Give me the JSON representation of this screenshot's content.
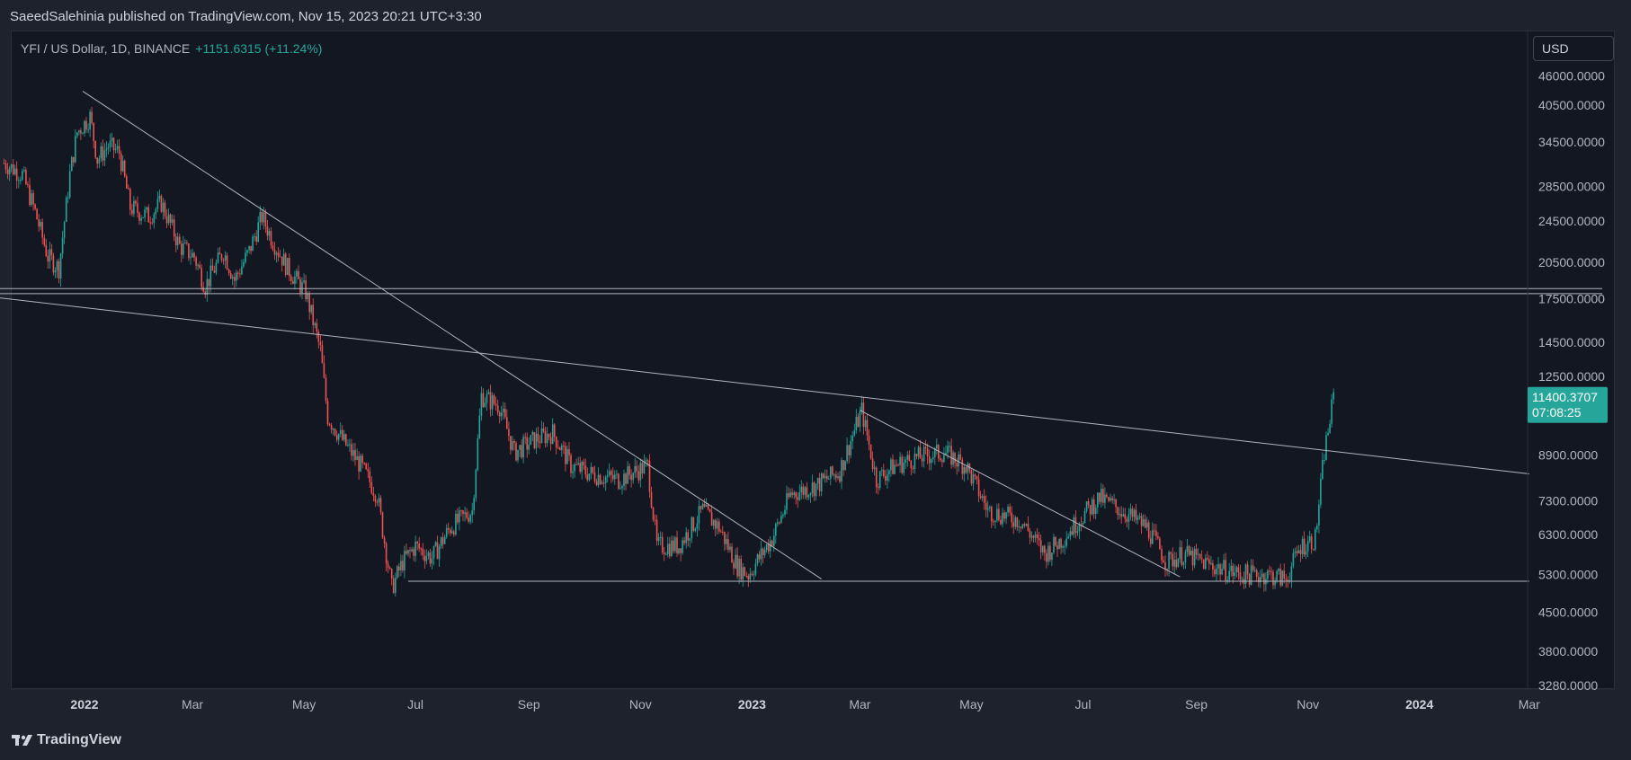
{
  "header": {
    "publish_line": "SaeedSalehinia published on TradingView.com, Nov 15, 2023 20:21 UTC+3:30"
  },
  "symbol": {
    "title": "YFI / US Dollar, 1D, BINANCE",
    "change": "+1151.6315 (+11.24%)"
  },
  "currency_button": {
    "label": "USD"
  },
  "footer": {
    "brand": "TradingView"
  },
  "colors": {
    "background": "#131722",
    "frame": "#1e222d",
    "up": "#26a69a",
    "down": "#ef5350",
    "trendline": "#b2b5be",
    "text": "#b2b5be"
  },
  "chart_data": {
    "type": "candlestick",
    "price_axis": {
      "scale": "log",
      "ticks": [
        "46000.0000",
        "40500.0000",
        "34500.0000",
        "28500.0000",
        "24500.0000",
        "20500.0000",
        "17500.0000",
        "14500.0000",
        "12500.0000",
        "8900.0000",
        "7300.0000",
        "6300.0000",
        "5300.0000",
        "4500.0000",
        "3800.0000",
        "3280.0000"
      ],
      "ylim": [
        3280,
        46000
      ]
    },
    "time_axis": {
      "ticks": [
        {
          "label": "2022",
          "date": "2022-01-01",
          "year": true
        },
        {
          "label": "Mar",
          "date": "2022-03-01",
          "year": false
        },
        {
          "label": "May",
          "date": "2022-05-01",
          "year": false
        },
        {
          "label": "Jul",
          "date": "2022-07-01",
          "year": false
        },
        {
          "label": "Sep",
          "date": "2022-09-01",
          "year": false
        },
        {
          "label": "Nov",
          "date": "2022-11-01",
          "year": false
        },
        {
          "label": "2023",
          "date": "2023-01-01",
          "year": true
        },
        {
          "label": "Mar",
          "date": "2023-03-01",
          "year": false
        },
        {
          "label": "May",
          "date": "2023-05-01",
          "year": false
        },
        {
          "label": "Jul",
          "date": "2023-07-01",
          "year": false
        },
        {
          "label": "Sep",
          "date": "2023-09-01",
          "year": false
        },
        {
          "label": "Nov",
          "date": "2023-11-01",
          "year": false
        },
        {
          "label": "2024",
          "date": "2024-01-01",
          "year": true
        },
        {
          "label": "Mar",
          "date": "2024-03-01",
          "year": false
        }
      ]
    },
    "last_price": {
      "value": "11400.3707",
      "countdown": "07:08:25",
      "price": 11400
    },
    "price_path": [
      {
        "date": "2021-11-18",
        "close": 31500
      },
      {
        "date": "2021-11-28",
        "close": 30000
      },
      {
        "date": "2021-12-05",
        "close": 25500
      },
      {
        "date": "2021-12-12",
        "close": 21000
      },
      {
        "date": "2021-12-18",
        "close": 20000
      },
      {
        "date": "2021-12-24",
        "close": 30000
      },
      {
        "date": "2021-12-28",
        "close": 36000
      },
      {
        "date": "2022-01-04",
        "close": 38500
      },
      {
        "date": "2022-01-08",
        "close": 32000
      },
      {
        "date": "2022-01-14",
        "close": 34000
      },
      {
        "date": "2022-01-20",
        "close": 33000
      },
      {
        "date": "2022-01-26",
        "close": 26000
      },
      {
        "date": "2022-02-05",
        "close": 25000
      },
      {
        "date": "2022-02-12",
        "close": 26500
      },
      {
        "date": "2022-02-22",
        "close": 22000
      },
      {
        "date": "2022-03-02",
        "close": 21000
      },
      {
        "date": "2022-03-08",
        "close": 18500
      },
      {
        "date": "2022-03-18",
        "close": 21500
      },
      {
        "date": "2022-03-24",
        "close": 19000
      },
      {
        "date": "2022-04-01",
        "close": 21500
      },
      {
        "date": "2022-04-08",
        "close": 25000
      },
      {
        "date": "2022-04-14",
        "close": 22500
      },
      {
        "date": "2022-04-22",
        "close": 20000
      },
      {
        "date": "2022-05-02",
        "close": 18000
      },
      {
        "date": "2022-05-10",
        "close": 14000
      },
      {
        "date": "2022-05-14",
        "close": 10500
      },
      {
        "date": "2022-05-22",
        "close": 9500
      },
      {
        "date": "2022-06-01",
        "close": 8500
      },
      {
        "date": "2022-06-10",
        "close": 7500
      },
      {
        "date": "2022-06-18",
        "close": 5000
      },
      {
        "date": "2022-06-24",
        "close": 5600
      },
      {
        "date": "2022-07-01",
        "close": 6000
      },
      {
        "date": "2022-07-10",
        "close": 5700
      },
      {
        "date": "2022-07-20",
        "close": 6500
      },
      {
        "date": "2022-08-01",
        "close": 7000
      },
      {
        "date": "2022-08-06",
        "close": 11500
      },
      {
        "date": "2022-08-16",
        "close": 11000
      },
      {
        "date": "2022-08-24",
        "close": 9000
      },
      {
        "date": "2022-09-04",
        "close": 9500
      },
      {
        "date": "2022-09-14",
        "close": 9800
      },
      {
        "date": "2022-09-24",
        "close": 8500
      },
      {
        "date": "2022-10-05",
        "close": 8200
      },
      {
        "date": "2022-10-20",
        "close": 8000
      },
      {
        "date": "2022-11-05",
        "close": 8500
      },
      {
        "date": "2022-11-10",
        "close": 6000
      },
      {
        "date": "2022-11-22",
        "close": 6000
      },
      {
        "date": "2022-12-05",
        "close": 7000
      },
      {
        "date": "2022-12-14",
        "close": 6500
      },
      {
        "date": "2022-12-24",
        "close": 5500
      },
      {
        "date": "2022-12-30",
        "close": 5300
      },
      {
        "date": "2023-01-12",
        "close": 6200
      },
      {
        "date": "2023-01-22",
        "close": 7500
      },
      {
        "date": "2023-02-05",
        "close": 7800
      },
      {
        "date": "2023-02-18",
        "close": 8300
      },
      {
        "date": "2023-03-02",
        "close": 10800
      },
      {
        "date": "2023-03-10",
        "close": 8000
      },
      {
        "date": "2023-03-20",
        "close": 8500
      },
      {
        "date": "2023-04-01",
        "close": 8800
      },
      {
        "date": "2023-04-16",
        "close": 9000
      },
      {
        "date": "2023-04-28",
        "close": 8500
      },
      {
        "date": "2023-05-10",
        "close": 7000
      },
      {
        "date": "2023-05-28",
        "close": 6700
      },
      {
        "date": "2023-06-10",
        "close": 5800
      },
      {
        "date": "2023-06-20",
        "close": 6200
      },
      {
        "date": "2023-06-30",
        "close": 6800
      },
      {
        "date": "2023-07-10",
        "close": 7400
      },
      {
        "date": "2023-07-22",
        "close": 7000
      },
      {
        "date": "2023-08-05",
        "close": 6500
      },
      {
        "date": "2023-08-16",
        "close": 5600
      },
      {
        "date": "2023-08-25",
        "close": 5800
      },
      {
        "date": "2023-09-10",
        "close": 5500
      },
      {
        "date": "2023-09-25",
        "close": 5300
      },
      {
        "date": "2023-10-10",
        "close": 5300
      },
      {
        "date": "2023-10-20",
        "close": 5200
      },
      {
        "date": "2023-10-28",
        "close": 6000
      },
      {
        "date": "2023-11-05",
        "close": 6200
      },
      {
        "date": "2023-11-10",
        "close": 9000
      },
      {
        "date": "2023-11-15",
        "close": 11400
      }
    ],
    "trendlines": [
      {
        "from": {
          "date": "2021-12-31",
          "price": 43000
        },
        "to": {
          "date": "2023-02-08",
          "price": 5200
        }
      },
      {
        "from": {
          "date": "2023-03-01",
          "price": 10800
        },
        "to": {
          "date": "2023-08-23",
          "price": 5250
        }
      },
      {
        "from": {
          "date": "2021-11-14",
          "price": 17600
        },
        "to": {
          "date": "2024-03-01",
          "price": 8200
        }
      },
      {
        "from": {
          "date": "2022-06-27",
          "price": 5150
        },
        "to": {
          "date": "2024-03-01",
          "price": 5150
        }
      },
      {
        "from": {
          "date": "2021-11-14",
          "price": 18300
        },
        "to": {
          "date": "2024-04-10",
          "price": 18300
        }
      },
      {
        "from": {
          "date": "2021-11-14",
          "price": 17900
        },
        "to": {
          "date": "2024-04-10",
          "price": 17900
        }
      }
    ]
  }
}
